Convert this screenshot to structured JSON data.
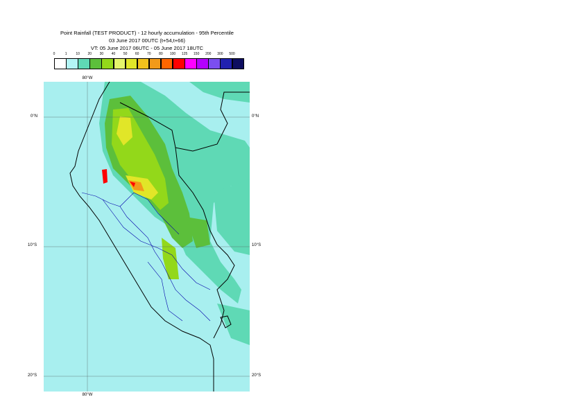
{
  "header": {
    "title_line1": "Point Rainfall (TEST PRODUCT) - 12 hourly accumulation - 95th Percentile",
    "title_line2": "03 June 2017 00UTC (t+54,t+66)",
    "title_line3": "VT: 05 June 2017 06UTC - 05 June 2017 18UTC"
  },
  "legend": {
    "ticks": [
      "0",
      "1",
      "10",
      "20",
      "30",
      "40",
      "50",
      "60",
      "70",
      "80",
      "100",
      "125",
      "150",
      "200",
      "300",
      "500"
    ],
    "colors": [
      "#ffffff",
      "#b3f5f5",
      "#5fd9b5",
      "#5cbf3b",
      "#93d81a",
      "#e5f56b",
      "#e1e628",
      "#f2c21d",
      "#f29a1a",
      "#ff6600",
      "#ff0000",
      "#ff00ff",
      "#b400ff",
      "#7b4ef0",
      "#2121b0",
      "#0d0d60"
    ]
  },
  "map": {
    "colors": {
      "background": "#a8efef",
      "light_rain": "#5fd9b5",
      "green": "#5cbf3b",
      "lime": "#93d81a",
      "yellow": "#e1e628",
      "orange": "#f29a1a",
      "red": "#ff0000",
      "coast": "#000000",
      "regions": "#0000aa"
    },
    "lat_labels": {
      "eq_left": "0°N",
      "eq_right": "0°N",
      "s10_left": "10°S",
      "s10_right": "10°S",
      "s20_left": "20°S",
      "s20_right": "20°S"
    },
    "lon_labels": {
      "top": "80°W",
      "bottom": "80°W"
    }
  }
}
